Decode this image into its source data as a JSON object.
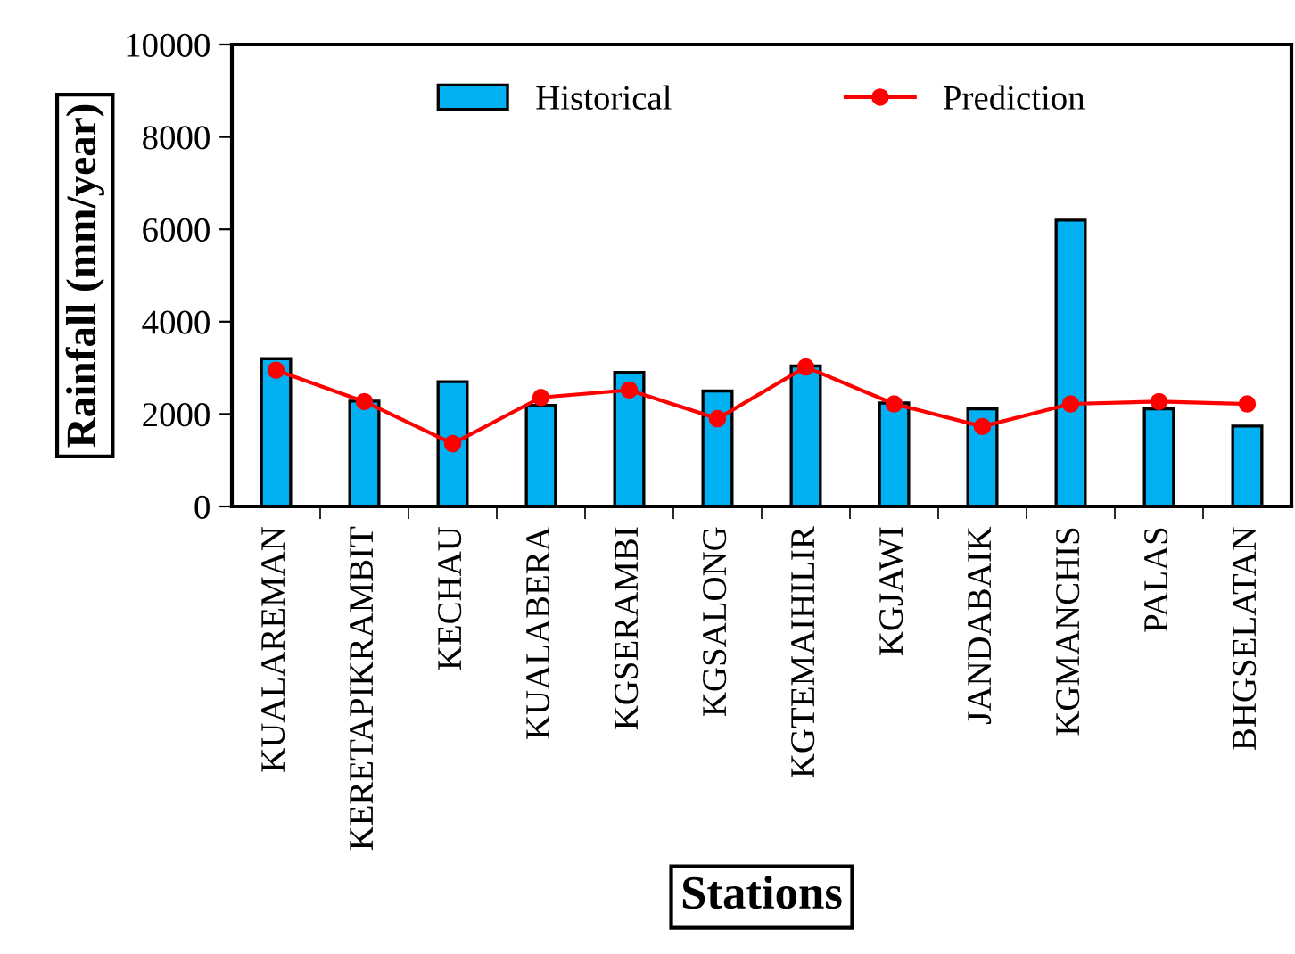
{
  "chart_data": {
    "type": "bar",
    "xlabel": "Stations",
    "ylabel": "Rainfall (mm/year)",
    "categories": [
      "KUALAREMAN",
      "KERETAPIKRAMBIT",
      "KECHAU",
      "KUALABERA",
      "KGSERAMBI",
      "KGSALONG",
      "KGTEMAIHILIR",
      "KGJAWI",
      "JANDABAIK",
      "KGMANCHIS",
      "PALAS",
      "BHGSELATAN"
    ],
    "series": [
      {
        "name": "Historical",
        "color": "#00b0f0",
        "values": [
          3200,
          2280,
          2700,
          2190,
          2900,
          2500,
          3040,
          2240,
          2110,
          6200,
          2110,
          1740
        ]
      },
      {
        "name": "Prediction",
        "type": "line",
        "color": "#ff0000",
        "marker": "circle",
        "values": [
          2950,
          2270,
          1360,
          2360,
          2520,
          1900,
          3020,
          2220,
          1730,
          2220,
          2270,
          2220
        ]
      }
    ],
    "ylim": [
      0,
      10000
    ],
    "yticks": [
      0,
      2000,
      4000,
      6000,
      8000,
      10000
    ],
    "grid": false,
    "legend": "top"
  }
}
